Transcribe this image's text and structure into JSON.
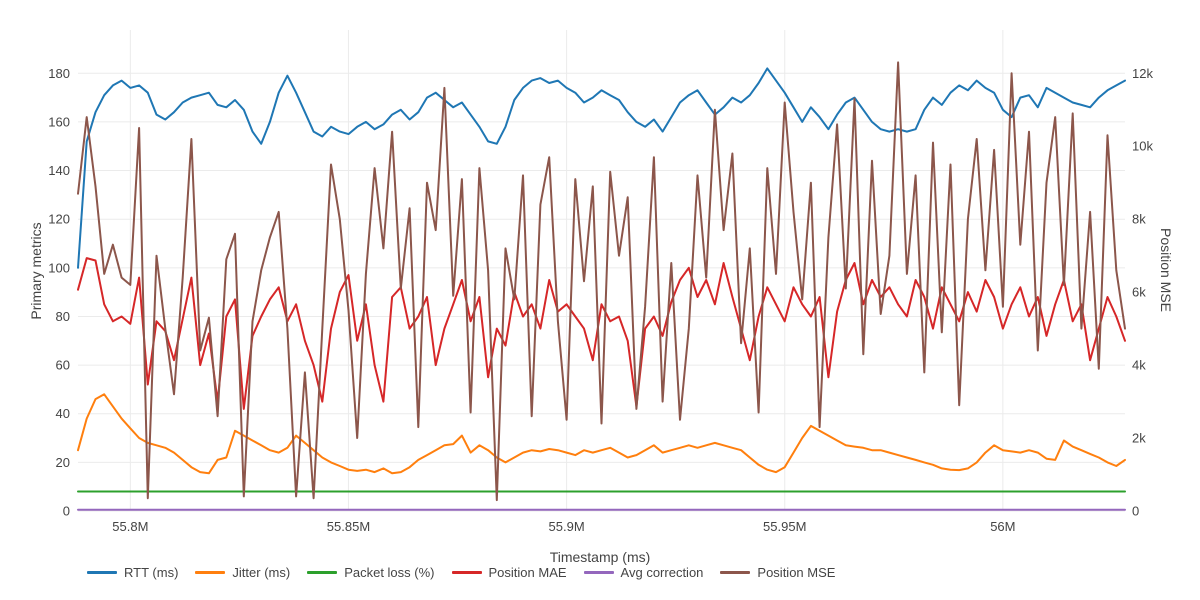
{
  "figure": {
    "xlabel": "Timestamp (ms)",
    "ylabel_left": "Primary metrics",
    "ylabel_right": "Position MSE",
    "background": "#ffffff",
    "grid_color": "#ebebeb",
    "text_color": "#444444"
  },
  "chart_data": {
    "type": "line",
    "title": "",
    "xlabel": "Timestamp (ms)",
    "ylabel": "Primary metrics",
    "ylabel_right": "Position MSE",
    "grid": true,
    "legend_position": "bottom",
    "x_axis": {
      "range": [
        55788000,
        56028000
      ],
      "start": 55788000,
      "step": 2000,
      "ticks": [
        {
          "value": 55800000,
          "label": "55.8M"
        },
        {
          "value": 55850000,
          "label": "55.85M"
        },
        {
          "value": 55900000,
          "label": "55.9M"
        },
        {
          "value": 55950000,
          "label": "55.95M"
        },
        {
          "value": 56000000,
          "label": "56M"
        }
      ]
    },
    "y_left": {
      "range": [
        0,
        197.8
      ],
      "ticks": [
        {
          "value": 0,
          "label": "0"
        },
        {
          "value": 20,
          "label": "20"
        },
        {
          "value": 40,
          "label": "40"
        },
        {
          "value": 60,
          "label": "60"
        },
        {
          "value": 80,
          "label": "80"
        },
        {
          "value": 100,
          "label": "100"
        },
        {
          "value": 120,
          "label": "120"
        },
        {
          "value": 140,
          "label": "140"
        },
        {
          "value": 160,
          "label": "160"
        },
        {
          "value": 180,
          "label": "180"
        }
      ]
    },
    "y_right": {
      "range": [
        0,
        13187
      ],
      "ticks": [
        {
          "value": 0,
          "label": "0"
        },
        {
          "value": 2000,
          "label": "2k"
        },
        {
          "value": 4000,
          "label": "4k"
        },
        {
          "value": 6000,
          "label": "6k"
        },
        {
          "value": 8000,
          "label": "8k"
        },
        {
          "value": 10000,
          "label": "10k"
        },
        {
          "value": 12000,
          "label": "12k"
        }
      ]
    },
    "series": [
      {
        "name": "RTT (ms)",
        "color": "#1f77b4",
        "axis": "left",
        "values": [
          100,
          152,
          164,
          171,
          175,
          177,
          174,
          175,
          172,
          163,
          161,
          164,
          168,
          170,
          171,
          172,
          167,
          166,
          169,
          165,
          156,
          151,
          160,
          172,
          179,
          172,
          164,
          156,
          154,
          158,
          156,
          155,
          158,
          160,
          157,
          159,
          163,
          165,
          161,
          164,
          170,
          172,
          169,
          166,
          168,
          163,
          158,
          152,
          151,
          158,
          169,
          174,
          177,
          178,
          176,
          177,
          174,
          172,
          168,
          170,
          173,
          171,
          169,
          164,
          160,
          158,
          161,
          156,
          162,
          168,
          171,
          173,
          168,
          163,
          166,
          170,
          168,
          171,
          176,
          182,
          177,
          172,
          166,
          160,
          166,
          162,
          157,
          163,
          168,
          170,
          165,
          160,
          157,
          156,
          157,
          156,
          157,
          165,
          170,
          167,
          172,
          175,
          173,
          177,
          174,
          172,
          165,
          162,
          170,
          171,
          166,
          174,
          172,
          170,
          168,
          167,
          166,
          170,
          173,
          175,
          177
        ]
      },
      {
        "name": "Jitter (ms)",
        "color": "#ff7f0e",
        "axis": "left",
        "values": [
          25,
          38,
          46,
          48,
          43,
          38,
          34,
          30,
          28,
          27,
          26,
          24,
          21,
          18,
          16,
          15.5,
          21,
          22,
          33,
          31,
          29,
          27,
          25,
          24,
          26,
          31,
          28,
          25,
          22,
          20,
          18.5,
          17,
          16.5,
          17,
          16,
          17.5,
          15.5,
          16,
          18,
          21,
          23,
          25,
          27,
          27.5,
          31,
          24,
          27,
          25,
          22,
          20,
          22,
          24,
          25,
          24.5,
          25.5,
          25,
          24,
          23,
          25,
          24,
          25,
          26,
          24,
          22,
          23,
          25,
          27,
          24,
          25,
          26,
          27,
          26,
          27,
          28,
          27,
          26,
          25,
          22,
          19,
          17,
          16,
          18,
          24,
          30,
          35,
          33,
          31,
          29,
          27,
          26.5,
          26,
          25,
          25,
          24,
          23,
          22,
          21,
          20,
          19,
          17.5,
          17,
          16.8,
          17.5,
          20,
          24,
          27,
          25,
          24.5,
          24,
          25,
          24,
          21.5,
          21,
          29,
          26.5,
          25,
          23.5,
          22,
          20,
          18.5,
          21
        ]
      },
      {
        "name": "Packet loss (%)",
        "color": "#2ca02c",
        "axis": "left",
        "values": [
          8,
          8,
          8,
          8,
          8,
          8,
          8,
          8,
          8,
          8,
          8,
          8,
          8,
          8,
          8,
          8,
          8,
          8,
          8,
          8,
          8,
          8,
          8,
          8,
          8,
          8,
          8,
          8,
          8,
          8,
          8,
          8,
          8,
          8,
          8,
          8,
          8,
          8,
          8,
          8,
          8,
          8,
          8,
          8,
          8,
          8,
          8,
          8,
          8,
          8,
          8,
          8,
          8,
          8,
          8,
          8,
          8,
          8,
          8,
          8,
          8,
          8,
          8,
          8,
          8,
          8,
          8,
          8,
          8,
          8,
          8,
          8,
          8,
          8,
          8,
          8,
          8,
          8,
          8,
          8,
          8,
          8,
          8,
          8,
          8,
          8,
          8,
          8,
          8,
          8,
          8,
          8,
          8,
          8,
          8,
          8,
          8,
          8,
          8,
          8,
          8,
          8,
          8,
          8,
          8,
          8,
          8,
          8,
          8,
          8,
          8,
          8,
          8,
          8,
          8,
          8,
          8,
          8,
          8,
          8,
          8
        ]
      },
      {
        "name": "Position MAE",
        "color": "#d62728",
        "axis": "left",
        "values": [
          91,
          104,
          103,
          85,
          78,
          80,
          77,
          96,
          52,
          78,
          74,
          62,
          79,
          96,
          60,
          73,
          45,
          80,
          87,
          42,
          72,
          80,
          87,
          92,
          78,
          85,
          70,
          60,
          45,
          75,
          90,
          97,
          70,
          85,
          60,
          45,
          88,
          92,
          75,
          80,
          88,
          60,
          75,
          85,
          95,
          78,
          88,
          55,
          75,
          68,
          90,
          80,
          85,
          75,
          95,
          82,
          85,
          80,
          75,
          62,
          85,
          78,
          80,
          70,
          43,
          75,
          80,
          72,
          86,
          95,
          100,
          88,
          95,
          85,
          102,
          88,
          75,
          62,
          80,
          92,
          85,
          78,
          92,
          85,
          80,
          88,
          55,
          82,
          95,
          102,
          85,
          95,
          88,
          92,
          85,
          80,
          95,
          88,
          75,
          92,
          85,
          78,
          90,
          82,
          95,
          88,
          75,
          85,
          92,
          80,
          88,
          72,
          85,
          95,
          78,
          85,
          62,
          75,
          88,
          80,
          70
        ]
      },
      {
        "name": "Avg correction",
        "color": "#9467bd",
        "axis": "left",
        "values": [
          0.5,
          0.5,
          0.5,
          0.5,
          0.5,
          0.5,
          0.5,
          0.5,
          0.5,
          0.5,
          0.5,
          0.5,
          0.5,
          0.5,
          0.5,
          0.5,
          0.5,
          0.5,
          0.5,
          0.5,
          0.5,
          0.5,
          0.5,
          0.5,
          0.5,
          0.5,
          0.5,
          0.5,
          0.5,
          0.5,
          0.5,
          0.5,
          0.5,
          0.5,
          0.5,
          0.5,
          0.5,
          0.5,
          0.5,
          0.5,
          0.5,
          0.5,
          0.5,
          0.5,
          0.5,
          0.5,
          0.5,
          0.5,
          0.5,
          0.5,
          0.5,
          0.5,
          0.5,
          0.5,
          0.5,
          0.5,
          0.5,
          0.5,
          0.5,
          0.5,
          0.5,
          0.5,
          0.5,
          0.5,
          0.5,
          0.5,
          0.5,
          0.5,
          0.5,
          0.5,
          0.5,
          0.5,
          0.5,
          0.5,
          0.5,
          0.5,
          0.5,
          0.5,
          0.5,
          0.5,
          0.5,
          0.5,
          0.5,
          0.5,
          0.5,
          0.5,
          0.5,
          0.5,
          0.5,
          0.5,
          0.5,
          0.5,
          0.5,
          0.5,
          0.5,
          0.5,
          0.5,
          0.5,
          0.5,
          0.5,
          0.5,
          0.5,
          0.5,
          0.5,
          0.5,
          0.5,
          0.5,
          0.5,
          0.5,
          0.5,
          0.5,
          0.5,
          0.5,
          0.5,
          0.5,
          0.5,
          0.5,
          0.5,
          0.5,
          0.5,
          0.5
        ]
      },
      {
        "name": "Position MSE",
        "color": "#8c564b",
        "axis": "right",
        "values": [
          8700,
          10800,
          8900,
          6500,
          7300,
          6400,
          6200,
          10500,
          350,
          7000,
          5000,
          3200,
          6400,
          10200,
          4400,
          5300,
          2600,
          6900,
          7600,
          400,
          5200,
          6600,
          7500,
          8200,
          5000,
          400,
          3800,
          350,
          5000,
          9500,
          8000,
          5500,
          2000,
          6500,
          9400,
          7200,
          10400,
          6100,
          8300,
          2300,
          9000,
          7700,
          11600,
          5900,
          9100,
          2700,
          9400,
          6600,
          300,
          7200,
          5800,
          9200,
          2600,
          8400,
          9700,
          5200,
          2500,
          9100,
          6300,
          8900,
          2400,
          9300,
          7000,
          8600,
          2800,
          5600,
          9700,
          3000,
          6800,
          2500,
          5000,
          9200,
          6400,
          11000,
          7700,
          9800,
          4600,
          7200,
          2700,
          9400,
          6500,
          11200,
          8200,
          5800,
          9000,
          2300,
          7500,
          10600,
          6100,
          11300,
          4300,
          9600,
          5400,
          7000,
          12300,
          6500,
          9200,
          3800,
          10100,
          4900,
          9500,
          2900,
          8000,
          10200,
          6600,
          9900,
          5600,
          12000,
          7300,
          10400,
          4400,
          9000,
          10800,
          6200,
          10900,
          5000,
          8200,
          3900,
          10300,
          6600,
          5000
        ]
      }
    ]
  }
}
